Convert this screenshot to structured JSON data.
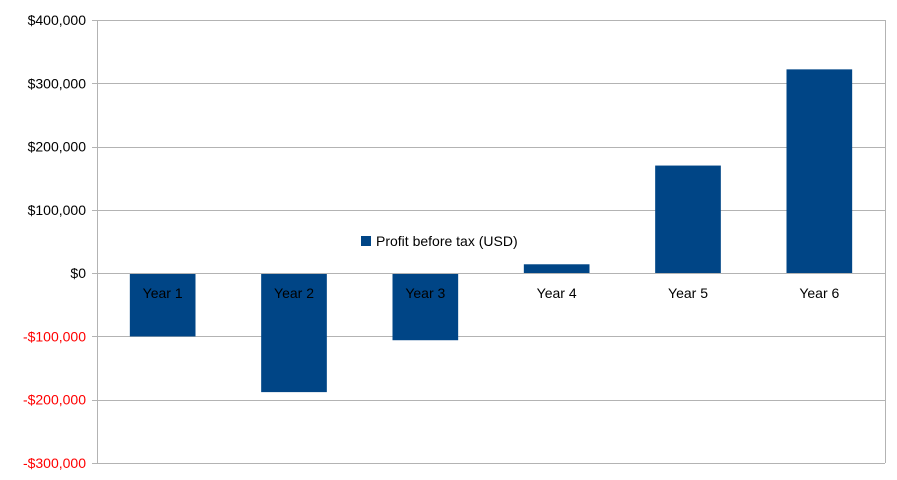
{
  "chart_data": {
    "type": "bar",
    "categories": [
      "Year 1",
      "Year 2",
      "Year 3",
      "Year 4",
      "Year 5",
      "Year 6"
    ],
    "series": [
      {
        "name": "Profit before tax (USD)",
        "values": [
          -100000,
          -188000,
          -106000,
          14000,
          170000,
          322000
        ],
        "color": "#004586"
      }
    ],
    "ylim": [
      -300000,
      400000
    ],
    "yticks": [
      400000,
      300000,
      200000,
      100000,
      0,
      -100000,
      -200000,
      -300000
    ],
    "ytick_labels": [
      "$400,000",
      "$300,000",
      "$200,000",
      "$100,000",
      "$0",
      "-$100,000",
      "-$200,000",
      "-$300,000"
    ],
    "negative_label_color": "#ff0000",
    "positive_label_color": "#000000",
    "grid": true,
    "legend_placement": "center",
    "title": "",
    "xlabel": "",
    "ylabel": ""
  }
}
